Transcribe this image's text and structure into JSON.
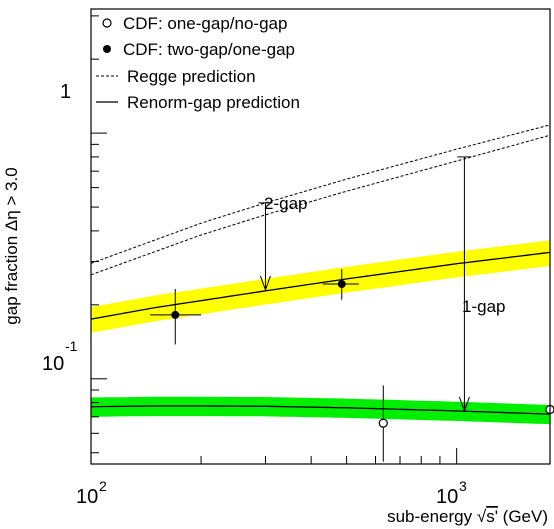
{
  "chart_data": {
    "type": "line",
    "xlabel_text": "sub-energy ",
    "xlabel_sqrt": "√",
    "xlabel_var": "s'",
    "xlabel_unit": " (GeV)",
    "ylabel": "gap fraction Δη > 3.0",
    "xscale": "log",
    "yscale": "log",
    "xlim": [
      100,
      1800
    ],
    "ylim": [
      0.045,
      3.2
    ],
    "x_ticks": [
      {
        "base": "10",
        "exp": "2",
        "value": 100
      },
      {
        "base": "10",
        "exp": "3",
        "value": 1000
      }
    ],
    "y_ticks": [
      {
        "base": "10",
        "exp": "-1",
        "value": 0.1
      },
      {
        "base": "1",
        "exp": "",
        "value": 1
      }
    ],
    "legend": [
      {
        "label": "CDF: one-gap/no-gap",
        "marker": "open-circle"
      },
      {
        "label": "CDF: two-gap/one-gap",
        "marker": "filled-circle"
      },
      {
        "label": "Regge prediction",
        "marker": "dashed-line"
      },
      {
        "label": "Renorm-gap prediction",
        "marker": "solid-line"
      }
    ],
    "colors": {
      "two_gap_band": "#ffff00",
      "one_gap_band": "#00ee00",
      "line": "#000000"
    },
    "series": [
      {
        "name": "CDF: one-gap/no-gap",
        "points": [
          {
            "x": 630,
            "y": 0.066,
            "y_lo": 0.046,
            "y_hi": 0.094,
            "x_lo": 630,
            "x_hi": 630
          },
          {
            "x": 1800,
            "y": 0.075,
            "y_lo": 0.063,
            "y_hi": 0.092,
            "x_lo": 1800,
            "x_hi": 1800
          }
        ]
      },
      {
        "name": "CDF: two-gap/one-gap",
        "points": [
          {
            "x": 170,
            "y": 0.182,
            "y_lo": 0.138,
            "y_hi": 0.232,
            "x_lo": 145,
            "x_hi": 200
          },
          {
            "x": 485,
            "y": 0.243,
            "y_lo": 0.21,
            "y_hi": 0.28,
            "x_lo": 430,
            "x_hi": 540
          }
        ]
      },
      {
        "name": "Regge prediction",
        "curves": [
          {
            "x": [
              100,
              200,
              300,
              500,
              1000,
              1800
            ],
            "y": [
              0.295,
              0.43,
              0.52,
              0.65,
              0.86,
              1.08
            ]
          },
          {
            "x": [
              100,
              200,
              300,
              500,
              1000,
              1800
            ],
            "y": [
              0.265,
              0.385,
              0.465,
              0.58,
              0.77,
              0.98
            ]
          }
        ]
      },
      {
        "name": "Renorm-gap prediction",
        "curves": [
          {
            "x": [
              100,
              150,
              200,
              300,
              500,
              1000,
              1800
            ],
            "y": [
              0.175,
              0.195,
              0.208,
              0.228,
              0.255,
              0.294,
              0.327
            ],
            "band": 0.12
          },
          {
            "x": [
              100,
              150,
              200,
              300,
              500,
              1000,
              1800
            ],
            "y": [
              0.077,
              0.0775,
              0.0775,
              0.0773,
              0.0762,
              0.074,
              0.0718
            ],
            "band": 0.09
          }
        ]
      }
    ],
    "annotations": [
      {
        "text": "2-gap",
        "x": 300,
        "y_from": 0.52,
        "y_to": 0.23
      },
      {
        "text": "1-gap",
        "x": 1050,
        "y_from": 0.8,
        "y_to": 0.074
      }
    ]
  }
}
